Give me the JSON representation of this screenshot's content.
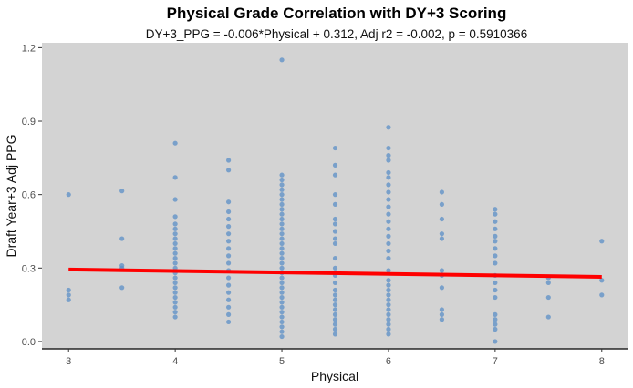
{
  "chart_data": {
    "type": "scatter",
    "title": "Physical Grade Correlation with DY+3 Scoring",
    "subtitle": "DY+3_PPG = -0.006*Physical + 0.312, Adj r2 = -0.002, p = 0.5910366",
    "xlabel": "Physical",
    "ylabel": "Draft Year+3 Adj PPG",
    "xlim": [
      2.75,
      8.25
    ],
    "ylim": [
      -0.03,
      1.22
    ],
    "xticks": [
      3,
      4,
      5,
      6,
      7,
      8
    ],
    "xtick_labels": [
      "3",
      "4",
      "5",
      "6",
      "7",
      "8"
    ],
    "yticks": [
      0.0,
      0.3,
      0.6,
      0.9,
      1.2
    ],
    "ytick_labels": [
      "0.0",
      "0.3",
      "0.6",
      "0.9",
      "1.2"
    ],
    "grid": false,
    "colors": {
      "panel": "#d3d3d3",
      "point": "#5b8fc7",
      "trend": "#ff0000",
      "axis": "#000000"
    },
    "trend_line": {
      "slope": -0.006,
      "intercept": 0.312,
      "x_range": [
        3,
        8
      ]
    },
    "series": [
      {
        "name": "players",
        "points": [
          {
            "x": 3,
            "y": 0.6
          },
          {
            "x": 3,
            "y": 0.21
          },
          {
            "x": 3,
            "y": 0.19
          },
          {
            "x": 3,
            "y": 0.17
          },
          {
            "x": 3.5,
            "y": 0.615
          },
          {
            "x": 3.5,
            "y": 0.42
          },
          {
            "x": 3.5,
            "y": 0.31
          },
          {
            "x": 3.5,
            "y": 0.3
          },
          {
            "x": 3.5,
            "y": 0.22
          },
          {
            "x": 4,
            "y": 0.81
          },
          {
            "x": 4,
            "y": 0.67
          },
          {
            "x": 4,
            "y": 0.58
          },
          {
            "x": 4,
            "y": 0.51
          },
          {
            "x": 4,
            "y": 0.48
          },
          {
            "x": 4,
            "y": 0.46
          },
          {
            "x": 4,
            "y": 0.44
          },
          {
            "x": 4,
            "y": 0.42
          },
          {
            "x": 4,
            "y": 0.4
          },
          {
            "x": 4,
            "y": 0.38
          },
          {
            "x": 4,
            "y": 0.36
          },
          {
            "x": 4,
            "y": 0.34
          },
          {
            "x": 4,
            "y": 0.32
          },
          {
            "x": 4,
            "y": 0.3
          },
          {
            "x": 4,
            "y": 0.28
          },
          {
            "x": 4,
            "y": 0.26
          },
          {
            "x": 4,
            "y": 0.24
          },
          {
            "x": 4,
            "y": 0.22
          },
          {
            "x": 4,
            "y": 0.2
          },
          {
            "x": 4,
            "y": 0.18
          },
          {
            "x": 4,
            "y": 0.16
          },
          {
            "x": 4,
            "y": 0.14
          },
          {
            "x": 4,
            "y": 0.12
          },
          {
            "x": 4,
            "y": 0.1
          },
          {
            "x": 4.5,
            "y": 0.74
          },
          {
            "x": 4.5,
            "y": 0.7
          },
          {
            "x": 4.5,
            "y": 0.57
          },
          {
            "x": 4.5,
            "y": 0.53
          },
          {
            "x": 4.5,
            "y": 0.5
          },
          {
            "x": 4.5,
            "y": 0.47
          },
          {
            "x": 4.5,
            "y": 0.44
          },
          {
            "x": 4.5,
            "y": 0.41
          },
          {
            "x": 4.5,
            "y": 0.38
          },
          {
            "x": 4.5,
            "y": 0.35
          },
          {
            "x": 4.5,
            "y": 0.32
          },
          {
            "x": 4.5,
            "y": 0.29
          },
          {
            "x": 4.5,
            "y": 0.26
          },
          {
            "x": 4.5,
            "y": 0.23
          },
          {
            "x": 4.5,
            "y": 0.2
          },
          {
            "x": 4.5,
            "y": 0.17
          },
          {
            "x": 4.5,
            "y": 0.14
          },
          {
            "x": 4.5,
            "y": 0.11
          },
          {
            "x": 4.5,
            "y": 0.08
          },
          {
            "x": 5,
            "y": 1.15
          },
          {
            "x": 5,
            "y": 0.68
          },
          {
            "x": 5,
            "y": 0.66
          },
          {
            "x": 5,
            "y": 0.64
          },
          {
            "x": 5,
            "y": 0.62
          },
          {
            "x": 5,
            "y": 0.6
          },
          {
            "x": 5,
            "y": 0.58
          },
          {
            "x": 5,
            "y": 0.56
          },
          {
            "x": 5,
            "y": 0.54
          },
          {
            "x": 5,
            "y": 0.52
          },
          {
            "x": 5,
            "y": 0.5
          },
          {
            "x": 5,
            "y": 0.48
          },
          {
            "x": 5,
            "y": 0.46
          },
          {
            "x": 5,
            "y": 0.44
          },
          {
            "x": 5,
            "y": 0.42
          },
          {
            "x": 5,
            "y": 0.4
          },
          {
            "x": 5,
            "y": 0.38
          },
          {
            "x": 5,
            "y": 0.36
          },
          {
            "x": 5,
            "y": 0.34
          },
          {
            "x": 5,
            "y": 0.32
          },
          {
            "x": 5,
            "y": 0.3
          },
          {
            "x": 5,
            "y": 0.28
          },
          {
            "x": 5,
            "y": 0.26
          },
          {
            "x": 5,
            "y": 0.24
          },
          {
            "x": 5,
            "y": 0.22
          },
          {
            "x": 5,
            "y": 0.2
          },
          {
            "x": 5,
            "y": 0.18
          },
          {
            "x": 5,
            "y": 0.16
          },
          {
            "x": 5,
            "y": 0.14
          },
          {
            "x": 5,
            "y": 0.12
          },
          {
            "x": 5,
            "y": 0.1
          },
          {
            "x": 5,
            "y": 0.08
          },
          {
            "x": 5,
            "y": 0.06
          },
          {
            "x": 5,
            "y": 0.04
          },
          {
            "x": 5,
            "y": 0.02
          },
          {
            "x": 5.5,
            "y": 0.79
          },
          {
            "x": 5.5,
            "y": 0.72
          },
          {
            "x": 5.5,
            "y": 0.68
          },
          {
            "x": 5.5,
            "y": 0.6
          },
          {
            "x": 5.5,
            "y": 0.56
          },
          {
            "x": 5.5,
            "y": 0.5
          },
          {
            "x": 5.5,
            "y": 0.48
          },
          {
            "x": 5.5,
            "y": 0.45
          },
          {
            "x": 5.5,
            "y": 0.42
          },
          {
            "x": 5.5,
            "y": 0.4
          },
          {
            "x": 5.5,
            "y": 0.34
          },
          {
            "x": 5.5,
            "y": 0.3
          },
          {
            "x": 5.5,
            "y": 0.27
          },
          {
            "x": 5.5,
            "y": 0.24
          },
          {
            "x": 5.5,
            "y": 0.21
          },
          {
            "x": 5.5,
            "y": 0.19
          },
          {
            "x": 5.5,
            "y": 0.17
          },
          {
            "x": 5.5,
            "y": 0.15
          },
          {
            "x": 5.5,
            "y": 0.13
          },
          {
            "x": 5.5,
            "y": 0.11
          },
          {
            "x": 5.5,
            "y": 0.09
          },
          {
            "x": 5.5,
            "y": 0.07
          },
          {
            "x": 5.5,
            "y": 0.05
          },
          {
            "x": 5.5,
            "y": 0.03
          },
          {
            "x": 6,
            "y": 0.875
          },
          {
            "x": 6,
            "y": 0.79
          },
          {
            "x": 6,
            "y": 0.76
          },
          {
            "x": 6,
            "y": 0.74
          },
          {
            "x": 6,
            "y": 0.69
          },
          {
            "x": 6,
            "y": 0.67
          },
          {
            "x": 6,
            "y": 0.64
          },
          {
            "x": 6,
            "y": 0.61
          },
          {
            "x": 6,
            "y": 0.58
          },
          {
            "x": 6,
            "y": 0.55
          },
          {
            "x": 6,
            "y": 0.52
          },
          {
            "x": 6,
            "y": 0.49
          },
          {
            "x": 6,
            "y": 0.46
          },
          {
            "x": 6,
            "y": 0.43
          },
          {
            "x": 6,
            "y": 0.4
          },
          {
            "x": 6,
            "y": 0.37
          },
          {
            "x": 6,
            "y": 0.34
          },
          {
            "x": 6,
            "y": 0.29
          },
          {
            "x": 6,
            "y": 0.25
          },
          {
            "x": 6,
            "y": 0.23
          },
          {
            "x": 6,
            "y": 0.21
          },
          {
            "x": 6,
            "y": 0.19
          },
          {
            "x": 6,
            "y": 0.17
          },
          {
            "x": 6,
            "y": 0.15
          },
          {
            "x": 6,
            "y": 0.13
          },
          {
            "x": 6,
            "y": 0.11
          },
          {
            "x": 6,
            "y": 0.09
          },
          {
            "x": 6,
            "y": 0.07
          },
          {
            "x": 6,
            "y": 0.05
          },
          {
            "x": 6,
            "y": 0.03
          },
          {
            "x": 6.5,
            "y": 0.61
          },
          {
            "x": 6.5,
            "y": 0.56
          },
          {
            "x": 6.5,
            "y": 0.5
          },
          {
            "x": 6.5,
            "y": 0.44
          },
          {
            "x": 6.5,
            "y": 0.42
          },
          {
            "x": 6.5,
            "y": 0.29
          },
          {
            "x": 6.5,
            "y": 0.27
          },
          {
            "x": 6.5,
            "y": 0.22
          },
          {
            "x": 6.5,
            "y": 0.13
          },
          {
            "x": 6.5,
            "y": 0.11
          },
          {
            "x": 6.5,
            "y": 0.09
          },
          {
            "x": 7,
            "y": 0.54
          },
          {
            "x": 7,
            "y": 0.52
          },
          {
            "x": 7,
            "y": 0.49
          },
          {
            "x": 7,
            "y": 0.46
          },
          {
            "x": 7,
            "y": 0.43
          },
          {
            "x": 7,
            "y": 0.41
          },
          {
            "x": 7,
            "y": 0.38
          },
          {
            "x": 7,
            "y": 0.35
          },
          {
            "x": 7,
            "y": 0.32
          },
          {
            "x": 7,
            "y": 0.27
          },
          {
            "x": 7,
            "y": 0.24
          },
          {
            "x": 7,
            "y": 0.21
          },
          {
            "x": 7,
            "y": 0.18
          },
          {
            "x": 7,
            "y": 0.11
          },
          {
            "x": 7,
            "y": 0.09
          },
          {
            "x": 7,
            "y": 0.07
          },
          {
            "x": 7,
            "y": 0.05
          },
          {
            "x": 7,
            "y": 0.0
          },
          {
            "x": 7.5,
            "y": 0.26
          },
          {
            "x": 7.5,
            "y": 0.24
          },
          {
            "x": 7.5,
            "y": 0.18
          },
          {
            "x": 7.5,
            "y": 0.1
          },
          {
            "x": 8,
            "y": 0.41
          },
          {
            "x": 8,
            "y": 0.25
          },
          {
            "x": 8,
            "y": 0.19
          }
        ]
      }
    ]
  }
}
